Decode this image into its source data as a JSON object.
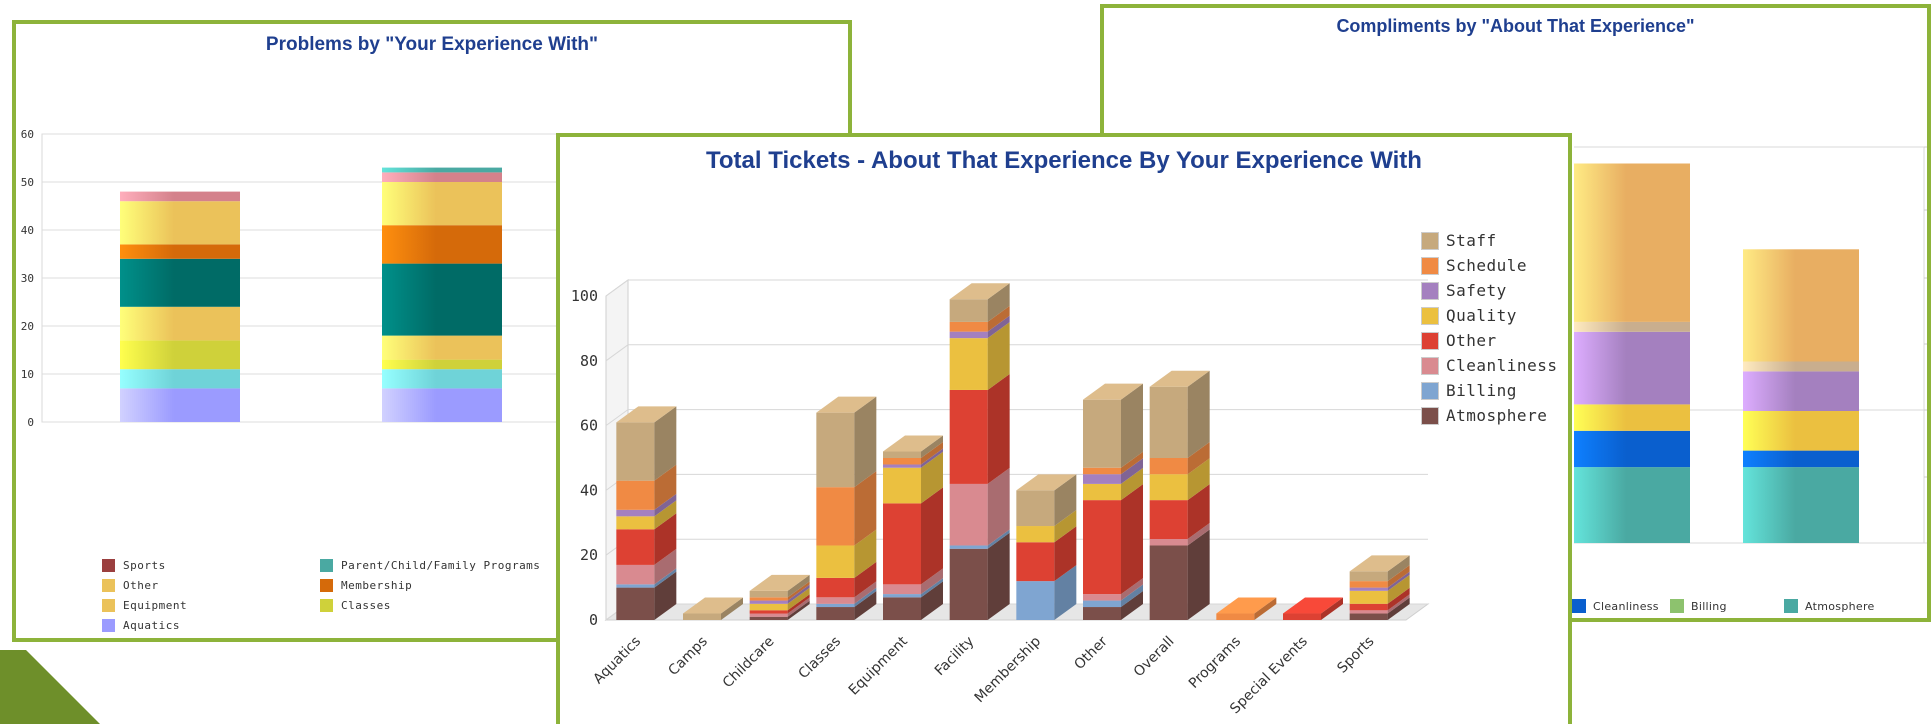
{
  "chart_data": [
    {
      "id": "left",
      "type": "bar",
      "stacked": true,
      "title": "Problems by \"Your Experience With\"",
      "ylim": [
        0,
        60
      ],
      "yticks": [
        0,
        10,
        20,
        30,
        40,
        50,
        60
      ],
      "grid": true,
      "legend_position": "bottom",
      "categories": [
        "",
        ""
      ],
      "series": [
        {
          "name": "Aquatics",
          "color": "#9b9bff",
          "values": [
            7,
            7
          ]
        },
        {
          "name": "",
          "color": "#6fd3d8",
          "values": [
            4,
            4
          ]
        },
        {
          "name": "Classes",
          "color": "#cfd13a",
          "values": [
            6,
            2
          ]
        },
        {
          "name": "Equipment",
          "color": "#ebc25a",
          "values": [
            7,
            5
          ]
        },
        {
          "name": "",
          "color": "#006b66",
          "values": [
            10,
            15
          ]
        },
        {
          "name": "Membership",
          "color": "#d56a0a",
          "values": [
            3,
            8
          ]
        },
        {
          "name": "Other",
          "color": "#ebc25a",
          "values": [
            9,
            9
          ]
        },
        {
          "name": "",
          "color": "#d4818b",
          "values": [
            2,
            2
          ]
        },
        {
          "name": "Parent/Child/Family Programs",
          "color": "#4aa9a2",
          "values": [
            0,
            1
          ]
        },
        {
          "name": "Sports",
          "color": "#9b3f3f",
          "values": [
            0,
            0
          ]
        }
      ],
      "legend": [
        {
          "label": "Sports",
          "color": "#9b3f3f"
        },
        {
          "label": "Other",
          "color": "#ebc25a"
        },
        {
          "label": "Equipment",
          "color": "#ebc25a"
        },
        {
          "label": "Aquatics",
          "color": "#9b9bff"
        },
        {
          "label": "Parent/Child/Family Programs",
          "color": "#4aa9a2"
        },
        {
          "label": "Membership",
          "color": "#d56a0a"
        },
        {
          "label": "Classes",
          "color": "#cfd13a"
        },
        {
          "label": "",
          "color": "#d4818b"
        },
        {
          "label": "",
          "color": "#006b66"
        },
        {
          "label": "",
          "color": "#6fd3d8"
        }
      ]
    },
    {
      "id": "center",
      "type": "bar",
      "stacked": true,
      "style": "3d",
      "title": "Total Tickets - About That Experience By Your Experience With",
      "ylim": [
        0,
        100
      ],
      "yticks": [
        0,
        20,
        40,
        60,
        80,
        100
      ],
      "grid": true,
      "legend_position": "right",
      "categories": [
        "Aquatics",
        "Camps",
        "Childcare",
        "Classes",
        "Equipment",
        "Facility",
        "Membership",
        "Other",
        "Overall",
        "Programs",
        "Special Events",
        "Sports"
      ],
      "series": [
        {
          "name": "Atmosphere",
          "color": "#7b4f4a",
          "values": [
            10,
            0,
            1,
            4,
            7,
            22,
            0,
            4,
            23,
            0,
            0,
            2
          ]
        },
        {
          "name": "Billing",
          "color": "#7fa5d1",
          "values": [
            1,
            0,
            0,
            1,
            1,
            1,
            12,
            2,
            0,
            0,
            0,
            0
          ]
        },
        {
          "name": "Cleanliness",
          "color": "#d98a90",
          "values": [
            6,
            0,
            1,
            2,
            3,
            19,
            0,
            2,
            2,
            0,
            0,
            1
          ]
        },
        {
          "name": "Other",
          "color": "#dd4133",
          "values": [
            11,
            0,
            1,
            6,
            25,
            29,
            12,
            29,
            12,
            0,
            2,
            2
          ]
        },
        {
          "name": "Quality",
          "color": "#ebc040",
          "values": [
            4,
            0,
            2,
            10,
            11,
            16,
            5,
            5,
            8,
            0,
            0,
            4
          ]
        },
        {
          "name": "Safety",
          "color": "#a480bf",
          "values": [
            2,
            0,
            1,
            0,
            1,
            2,
            0,
            3,
            0,
            0,
            0,
            1
          ]
        },
        {
          "name": "Schedule",
          "color": "#f08a44",
          "values": [
            9,
            0,
            1,
            18,
            2,
            3,
            0,
            2,
            5,
            2,
            0,
            2
          ]
        },
        {
          "name": "Staff",
          "color": "#c6a97d",
          "values": [
            18,
            2,
            2,
            23,
            2,
            7,
            11,
            21,
            22,
            0,
            0,
            3
          ]
        }
      ],
      "legend": [
        {
          "label": "Staff",
          "color": "#c6a97d"
        },
        {
          "label": "Schedule",
          "color": "#f08a44"
        },
        {
          "label": "Safety",
          "color": "#a480bf"
        },
        {
          "label": "Quality",
          "color": "#ebc040"
        },
        {
          "label": "Other",
          "color": "#dd4133"
        },
        {
          "label": "Cleanliness",
          "color": "#d98a90"
        },
        {
          "label": "Billing",
          "color": "#7fa5d1"
        },
        {
          "label": "Atmosphere",
          "color": "#7b4f4a"
        }
      ]
    },
    {
      "id": "right",
      "type": "bar",
      "stacked": true,
      "title": "Compliments by \"About That Experience\"",
      "ylim": [
        0,
        12
      ],
      "grid": true,
      "legend_position": "bottom",
      "categories": [
        "",
        ""
      ],
      "series": [
        {
          "name": "Atmosphere",
          "color": "#4aa9a2",
          "values": [
            2.3,
            2.3
          ]
        },
        {
          "name": "Cleanliness",
          "color": "#0a5fce",
          "values": [
            1.1,
            0.5
          ]
        },
        {
          "name": "",
          "color": "#ebc040",
          "values": [
            0.8,
            1.2
          ]
        },
        {
          "name": "",
          "color": "#a480bf",
          "values": [
            2.2,
            1.2
          ]
        },
        {
          "name": "",
          "color": "#c9ae8e",
          "values": [
            0.3,
            0.3
          ]
        },
        {
          "name": "",
          "color": "#e8ae62",
          "values": [
            4.8,
            3.4
          ]
        }
      ],
      "legend": [
        {
          "label": "Cleanliness",
          "color": "#0a5fce"
        },
        {
          "label": "Billing",
          "color": "#8dc26e"
        },
        {
          "label": "Atmosphere",
          "color": "#4aa9a2"
        }
      ]
    }
  ]
}
